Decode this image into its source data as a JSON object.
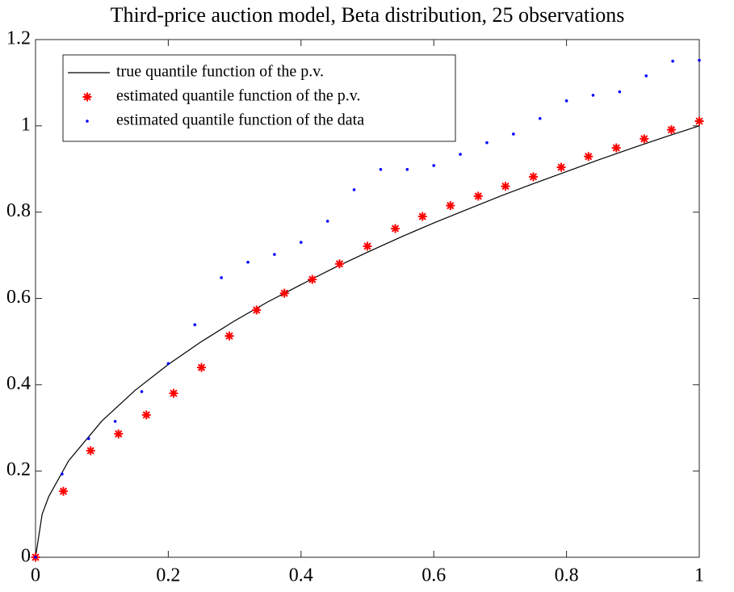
{
  "chart_data": {
    "type": "line",
    "title": "Third-price auction model, Beta distribution, 25 observations",
    "xlim": [
      0,
      1
    ],
    "ylim": [
      0,
      1.2
    ],
    "xticks": [
      0,
      0.2,
      0.4,
      0.6,
      0.8,
      1
    ],
    "yticks": [
      0,
      0.2,
      0.4,
      0.6,
      0.8,
      1,
      1.2
    ],
    "grid": false,
    "legend": "upper-left",
    "series": [
      {
        "name": "true quantile function of the p.v.",
        "color": "#000000",
        "marker": "line",
        "x": [
          0,
          0.01,
          0.02,
          0.05,
          0.1,
          0.15,
          0.2,
          0.25,
          0.3,
          0.35,
          0.4,
          0.45,
          0.5,
          0.55,
          0.6,
          0.65,
          0.7,
          0.75,
          0.8,
          0.85,
          0.9,
          0.95,
          1
        ],
        "values": [
          0,
          0.1,
          0.141,
          0.224,
          0.316,
          0.387,
          0.447,
          0.5,
          0.548,
          0.592,
          0.632,
          0.671,
          0.707,
          0.742,
          0.775,
          0.806,
          0.837,
          0.866,
          0.894,
          0.922,
          0.949,
          0.975,
          1
        ]
      },
      {
        "name": "estimated quantile function of the p.v.",
        "color": "#ff0000",
        "marker": "star",
        "x": [
          0,
          0.042,
          0.083,
          0.125,
          0.167,
          0.208,
          0.25,
          0.292,
          0.333,
          0.375,
          0.417,
          0.458,
          0.5,
          0.542,
          0.583,
          0.625,
          0.667,
          0.708,
          0.75,
          0.792,
          0.833,
          0.875,
          0.917,
          0.958,
          1
        ],
        "values": [
          0,
          0.153,
          0.247,
          0.286,
          0.33,
          0.38,
          0.44,
          0.513,
          0.573,
          0.612,
          0.644,
          0.68,
          0.721,
          0.762,
          0.79,
          0.815,
          0.837,
          0.86,
          0.882,
          0.904,
          0.929,
          0.949,
          0.97,
          0.991,
          1.011
        ]
      },
      {
        "name": "estimated quantile function of the data",
        "color": "#0000ff",
        "marker": "dot",
        "x": [
          0,
          0.04,
          0.08,
          0.12,
          0.16,
          0.2,
          0.24,
          0.28,
          0.32,
          0.36,
          0.4,
          0.44,
          0.48,
          0.52,
          0.56,
          0.6,
          0.64,
          0.68,
          0.72,
          0.76,
          0.8,
          0.84,
          0.88,
          0.92,
          0.96,
          1
        ],
        "values": [
          0,
          0.193,
          0.275,
          0.315,
          0.384,
          0.449,
          0.539,
          0.648,
          0.684,
          0.702,
          0.73,
          0.779,
          0.852,
          0.899,
          0.899,
          0.908,
          0.934,
          0.961,
          0.981,
          1.017,
          1.058,
          1.071,
          1.079,
          1.116,
          1.15,
          1.152
        ]
      }
    ]
  }
}
